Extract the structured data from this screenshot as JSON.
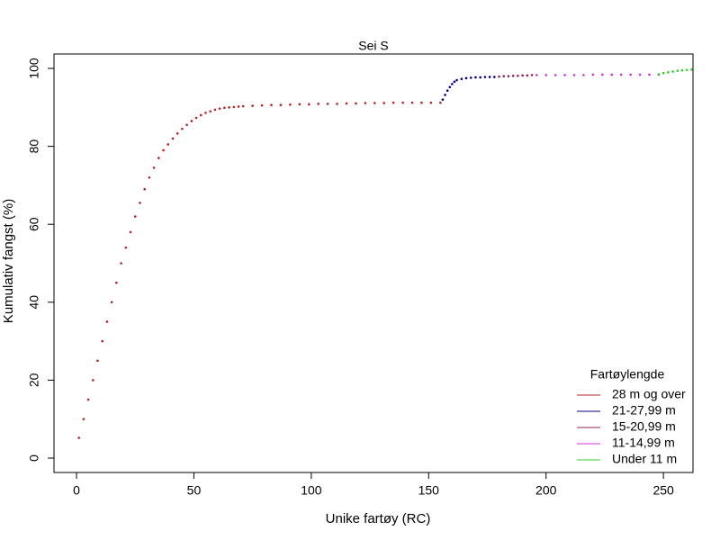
{
  "chart_data": {
    "type": "scatter",
    "title": "Sei S",
    "xlabel": "Unike fartøy (RC)",
    "ylabel": "Kumulativ fangst (%)",
    "xlim": [
      -9.6,
      262.6
    ],
    "ylim": [
      -3.7,
      103.7
    ],
    "xticks": [
      0,
      50,
      100,
      150,
      200,
      250
    ],
    "yticks": [
      0,
      20,
      40,
      60,
      80,
      100
    ],
    "legend_title": "Fartøylengde",
    "legend": "bottomright",
    "series": [
      {
        "name": "28 m og over",
        "color": "#b22222",
        "x": [
          1,
          3,
          5,
          7,
          9,
          11,
          13,
          15,
          17,
          19,
          21,
          23,
          25,
          27,
          29,
          31,
          33,
          35,
          37,
          39,
          41,
          43,
          45,
          47,
          49,
          51,
          53,
          55,
          57,
          59,
          61,
          63,
          65,
          67,
          69,
          71,
          75,
          79,
          83,
          87,
          91,
          95,
          99,
          103,
          107,
          111,
          115,
          119,
          123,
          127,
          131,
          135,
          139,
          143,
          147,
          151,
          155
        ],
        "values": [
          5.2,
          10,
          15,
          20,
          25,
          30,
          35,
          40,
          45,
          50,
          54,
          58,
          62,
          65.5,
          69,
          72,
          74.5,
          77,
          79,
          80.5,
          82,
          83.3,
          84.5,
          85.5,
          86.5,
          87.3,
          88,
          88.6,
          89,
          89.4,
          89.7,
          89.9,
          90,
          90.1,
          90.2,
          90.3,
          90.4,
          90.5,
          90.6,
          90.6,
          90.7,
          90.8,
          90.8,
          90.9,
          90.9,
          90.9,
          91,
          91,
          91.1,
          91.1,
          91.1,
          91.2,
          91.2,
          91.2,
          91.2,
          91.2,
          91.2
        ]
      },
      {
        "name": "21-27,99 m",
        "color": "#000080",
        "x": [
          156,
          157,
          158,
          159,
          160,
          161,
          162,
          164,
          166,
          168,
          170,
          172,
          174,
          176,
          178
        ],
        "values": [
          92,
          93.2,
          94.3,
          95.2,
          96,
          96.6,
          97,
          97.3,
          97.5,
          97.6,
          97.7,
          97.7,
          97.8,
          97.8,
          97.8
        ]
      },
      {
        "name": "15-20,99 m",
        "color": "#8b2252",
        "x": [
          180,
          182,
          184,
          186,
          188,
          190,
          192,
          194
        ],
        "values": [
          97.9,
          98,
          98,
          98.1,
          98.1,
          98.2,
          98.2,
          98.3
        ]
      },
      {
        "name": "11-14,99 m",
        "color": "#cc33cc",
        "x": [
          196,
          200,
          204,
          208,
          212,
          216,
          220,
          224,
          228,
          232,
          236,
          240,
          244,
          248
        ],
        "values": [
          98.3,
          98.3,
          98.3,
          98.3,
          98.3,
          98.3,
          98.4,
          98.4,
          98.4,
          98.4,
          98.4,
          98.4,
          98.4,
          98.4
        ]
      },
      {
        "name": "Under 11 m",
        "color": "#33cc33",
        "x": [
          248,
          250,
          252,
          254,
          256,
          258,
          260,
          262
        ],
        "values": [
          98.5,
          98.8,
          99,
          99.2,
          99.4,
          99.5,
          99.6,
          99.7
        ]
      }
    ]
  }
}
